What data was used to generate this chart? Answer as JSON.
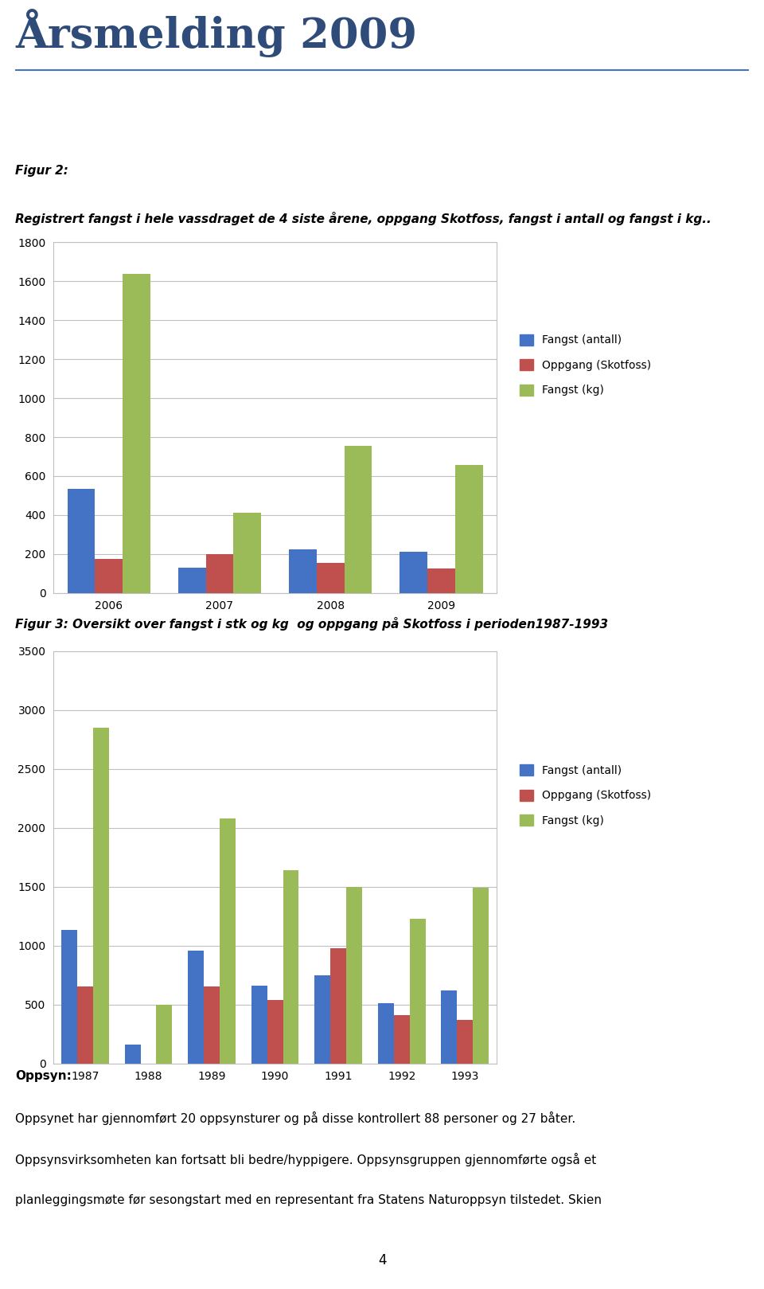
{
  "title": "Årsmelding 2009",
  "header_line_color": "#4472c4",
  "fig2_label": "Figur 2:",
  "fig2_desc": "Registrert fangst i hele vassdraget de 4 siste årene, oppgang Skotfoss, fangst i antall og fangst i kg..",
  "chart1": {
    "years": [
      2006,
      2007,
      2008,
      2009
    ],
    "fangst_antall": [
      535,
      130,
      225,
      210
    ],
    "oppgang_skotfoss": [
      175,
      200,
      155,
      125
    ],
    "fangst_kg": [
      1640,
      410,
      755,
      655
    ],
    "ylim": [
      0,
      1800
    ],
    "yticks": [
      0,
      200,
      400,
      600,
      800,
      1000,
      1200,
      1400,
      1600,
      1800
    ],
    "legend_labels": [
      "Fangst (antall)",
      "Oppgang (Skotfoss)",
      "Fangst (kg)"
    ],
    "bar_colors": [
      "#4472c4",
      "#c0504d",
      "#9bbb59"
    ],
    "bar_width": 0.25
  },
  "fig3_label": "Figur 3: Oversikt over fangst i stk og kg  og oppgang på Skotfoss i perioden1987-1993",
  "chart2": {
    "years": [
      1987,
      1988,
      1989,
      1990,
      1991,
      1992,
      1993
    ],
    "fangst_antall": [
      1130,
      160,
      960,
      660,
      750,
      510,
      620
    ],
    "oppgang_skotfoss": [
      650,
      0,
      650,
      535,
      980,
      410,
      370
    ],
    "fangst_kg": [
      2850,
      500,
      2080,
      1640,
      1500,
      1230,
      1490
    ],
    "ylim": [
      0,
      3500
    ],
    "yticks": [
      0,
      500,
      1000,
      1500,
      2000,
      2500,
      3000,
      3500
    ],
    "legend_labels": [
      "Fangst (antall)",
      "Oppgang (Skotfoss)",
      "Fangst (kg)"
    ],
    "bar_colors": [
      "#4472c4",
      "#c0504d",
      "#9bbb59"
    ],
    "bar_width": 0.25
  },
  "oppsyn_title": "Oppsyn:",
  "oppsyn_text1": "Oppsynet har gjennomført 20 oppsynsturer og på disse kontrollert 88 personer og 27 båter.",
  "oppsyn_text2": "Oppsynsvirksomheten kan fortsatt bli bedre/hyppigere. Oppsynsgruppen gjennomførte også et",
  "oppsyn_text3": "planleggingsmøte før sesongstart med en representant fra Statens Naturoppsyn tilstedet. Skien",
  "page_number": "4",
  "background_color": "#ffffff",
  "text_color": "#000000",
  "title_color": "#2e4b7a",
  "grid_color": "#c0c0c0",
  "chart_box_color": "#c0c0c0"
}
